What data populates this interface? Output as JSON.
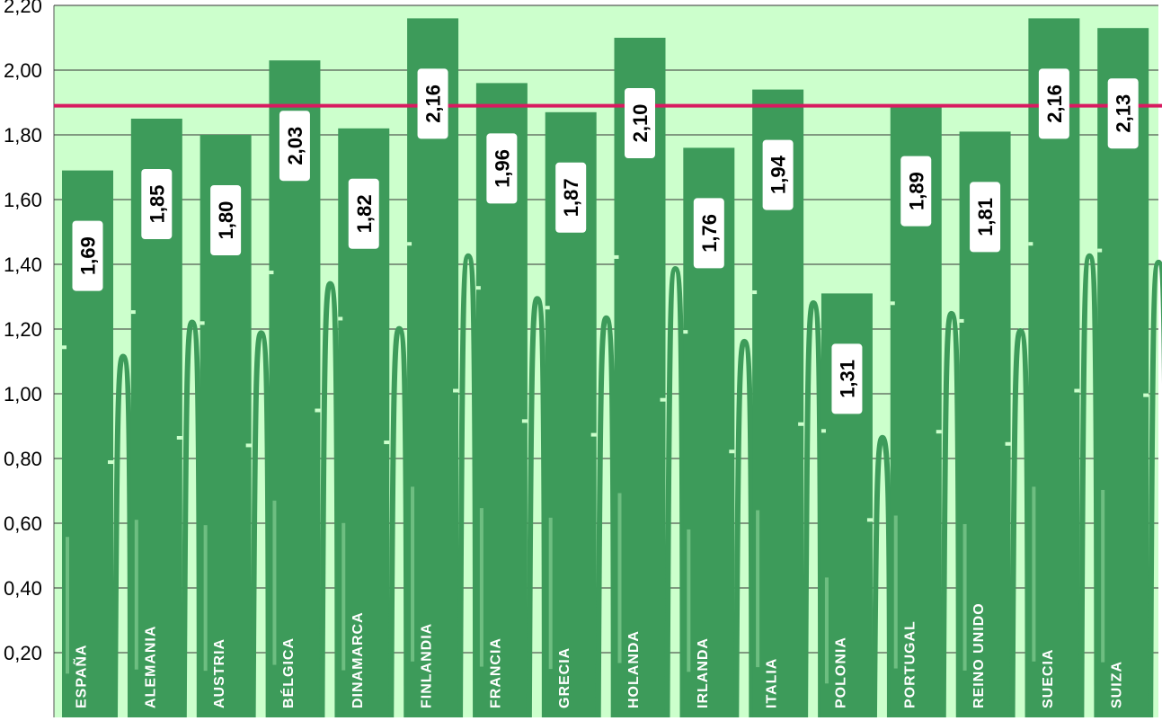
{
  "chart_data": {
    "type": "bar",
    "categories": [
      "ESPAÑA",
      "ALEMANIA",
      "AUSTRIA",
      "BÉLGICA",
      "DINAMARCA",
      "FINLANDIA",
      "FRANCIA",
      "GRECIA",
      "HOLANDA",
      "IRLANDA",
      "ITALIA",
      "POLONIA",
      "PORTUGAL",
      "REINO UNIDO",
      "SUECIA",
      "SUIZA"
    ],
    "values": [
      1.69,
      1.85,
      1.8,
      2.03,
      1.82,
      2.16,
      1.96,
      1.87,
      2.1,
      1.76,
      1.94,
      1.31,
      1.89,
      1.81,
      2.16,
      2.13
    ],
    "value_labels": [
      "1,69",
      "1,85",
      "1,80",
      "2,03",
      "1,82",
      "2,16",
      "1,96",
      "1,87",
      "2,10",
      "1,76",
      "1,94",
      "1,31",
      "1,89",
      "1,81",
      "2,16",
      "2,13"
    ],
    "yticks": [
      0.2,
      0.4,
      0.6,
      0.8,
      1.0,
      1.2,
      1.4,
      1.6,
      1.8,
      2.0,
      2.2
    ],
    "ytick_labels": [
      "0,20",
      "0,40",
      "0,60",
      "0,80",
      "1,00",
      "1,20",
      "1,40",
      "1,60",
      "1,80",
      "2,00",
      "2,20"
    ],
    "ylim": [
      0,
      2.2
    ],
    "reference_line": 1.89,
    "grid": true,
    "colors": {
      "plot_background": "#ccffcc",
      "bar": "#3d9b5a",
      "reference_line": "#d81b60",
      "grid": "#333333"
    }
  }
}
